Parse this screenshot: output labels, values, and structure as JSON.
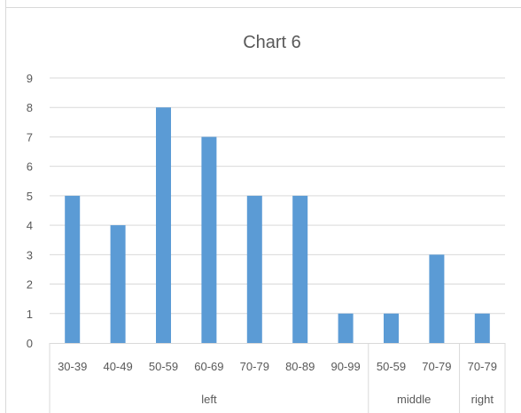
{
  "chart_data": {
    "type": "bar",
    "title": "Chart 6",
    "xlabel": "",
    "ylabel": "",
    "ylim": [
      0,
      9
    ],
    "yticks": [
      0,
      1,
      2,
      3,
      4,
      5,
      6,
      7,
      8,
      9
    ],
    "grid": true,
    "legend": "none",
    "categories": [
      "30-39",
      "40-49",
      "50-59",
      "60-69",
      "70-79",
      "80-89",
      "90-99",
      "50-59",
      "70-79",
      "70-79"
    ],
    "groups": [
      {
        "label": "left",
        "count": 7
      },
      {
        "label": "middle",
        "count": 2
      },
      {
        "label": "right",
        "count": 1
      }
    ],
    "series": [
      {
        "values": [
          5,
          4,
          8,
          7,
          5,
          5,
          1,
          1,
          3,
          1
        ]
      }
    ]
  },
  "colors": {
    "bar": "#5b9bd5",
    "grid": "#d9d9d9",
    "text": "#595959",
    "title": "#595959"
  }
}
